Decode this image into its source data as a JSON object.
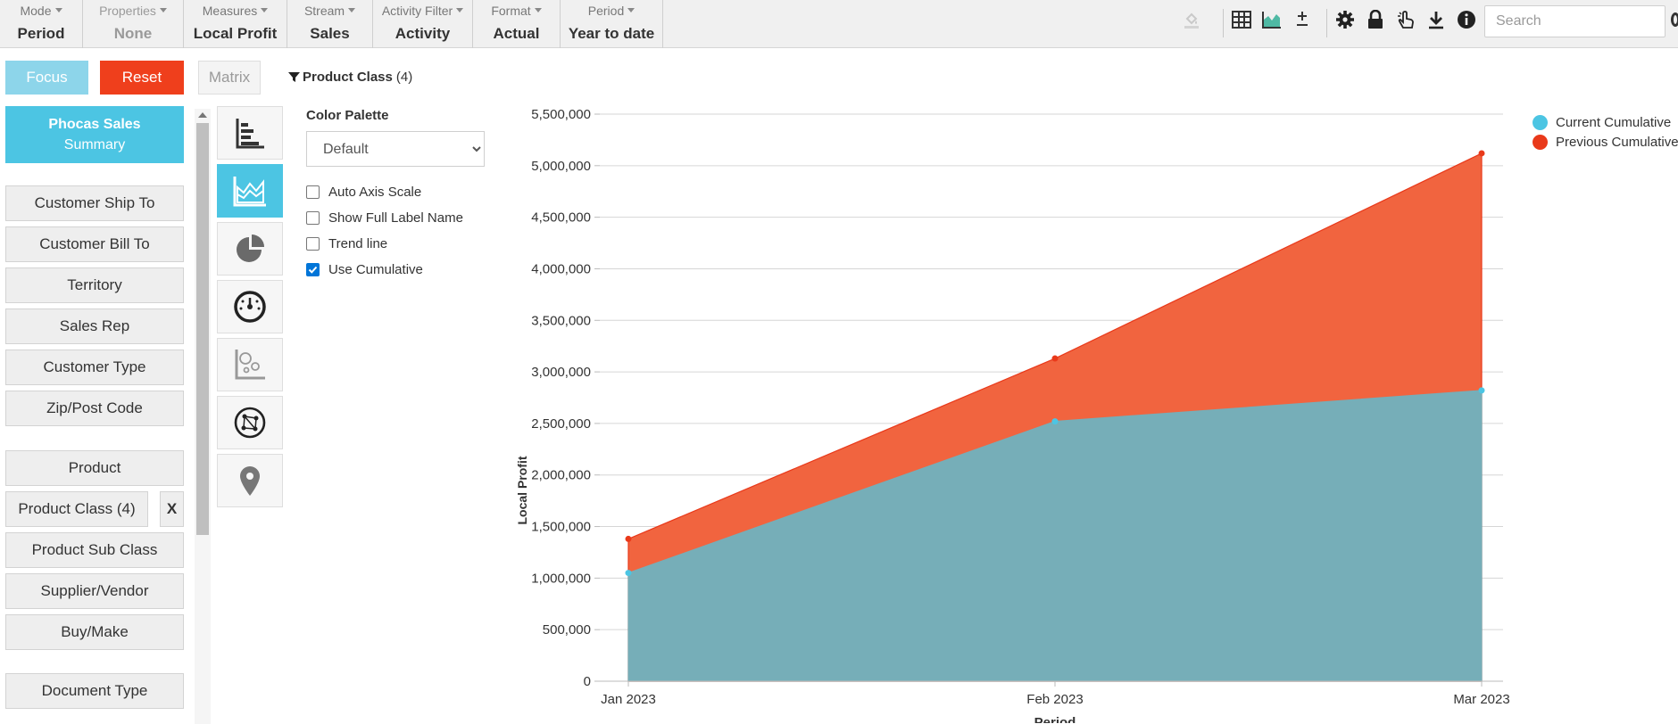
{
  "toolbar": {
    "dimensions": [
      {
        "caption": "Mode",
        "value": "Period",
        "muted": false
      },
      {
        "caption": "Properties",
        "value": "None",
        "muted": true
      },
      {
        "caption": "Measures",
        "value": "Local Profit",
        "muted": false
      },
      {
        "caption": "Stream",
        "value": "Sales",
        "muted": false
      },
      {
        "caption": "Activity Filter",
        "value": "Activity",
        "muted": false
      },
      {
        "caption": "Format",
        "value": "Actual",
        "muted": false
      },
      {
        "caption": "Period",
        "value": "Year to date",
        "muted": false
      }
    ],
    "search_placeholder": "Search"
  },
  "actions": {
    "focus": "Focus",
    "reset": "Reset",
    "matrix": "Matrix"
  },
  "filter": {
    "label": "Product Class",
    "count": "(4)"
  },
  "summary": {
    "line1": "Phocas Sales",
    "line2": "Summary"
  },
  "dimension_list": [
    "Customer Ship To",
    "Customer Bill To",
    "Territory",
    "Sales Rep",
    "Customer Type",
    "Zip/Post Code",
    "Product",
    "Product Class (4)",
    "Product Sub Class",
    "Supplier/Vendor",
    "Buy/Make",
    "Document Type"
  ],
  "remove_filter_label": "X",
  "chart_types": [
    "bar-chart-icon",
    "area-chart-icon",
    "pie-chart-icon",
    "gauge-icon",
    "bubble-chart-icon",
    "network-icon",
    "map-pin-icon"
  ],
  "options": {
    "palette_title": "Color Palette",
    "palette_value": "Default",
    "checkboxes": [
      {
        "label": "Auto Axis Scale",
        "checked": false
      },
      {
        "label": "Show Full Label Name",
        "checked": false
      },
      {
        "label": "Trend line",
        "checked": false
      },
      {
        "label": "Use Cumulative",
        "checked": true
      }
    ]
  },
  "colors": {
    "current": "#76aeb8",
    "current_marker": "#4cc5e3",
    "previous": "#f1643f",
    "previous_marker": "#e9391a",
    "accent": "#4cc5e3",
    "reset": "#ef3f1c"
  },
  "chart_data": {
    "type": "area",
    "categories": [
      "Jan 2023",
      "Feb 2023",
      "Mar 2023"
    ],
    "series": [
      {
        "name": "Current Cumulative",
        "values": [
          1050000,
          2520000,
          2820000
        ]
      },
      {
        "name": "Previous Cumulative",
        "values": [
          1380000,
          3130000,
          5120000
        ]
      }
    ],
    "xlabel": "Period",
    "ylabel": "Local Profit",
    "ylim": [
      0,
      5500000
    ],
    "yticks": [
      "0",
      "500,000",
      "1,000,000",
      "1,500,000",
      "2,000,000",
      "2,500,000",
      "3,000,000",
      "3,500,000",
      "4,000,000",
      "4,500,000",
      "5,000,000",
      "5,500,000"
    ],
    "grid": true,
    "legend_position": "top-right"
  }
}
